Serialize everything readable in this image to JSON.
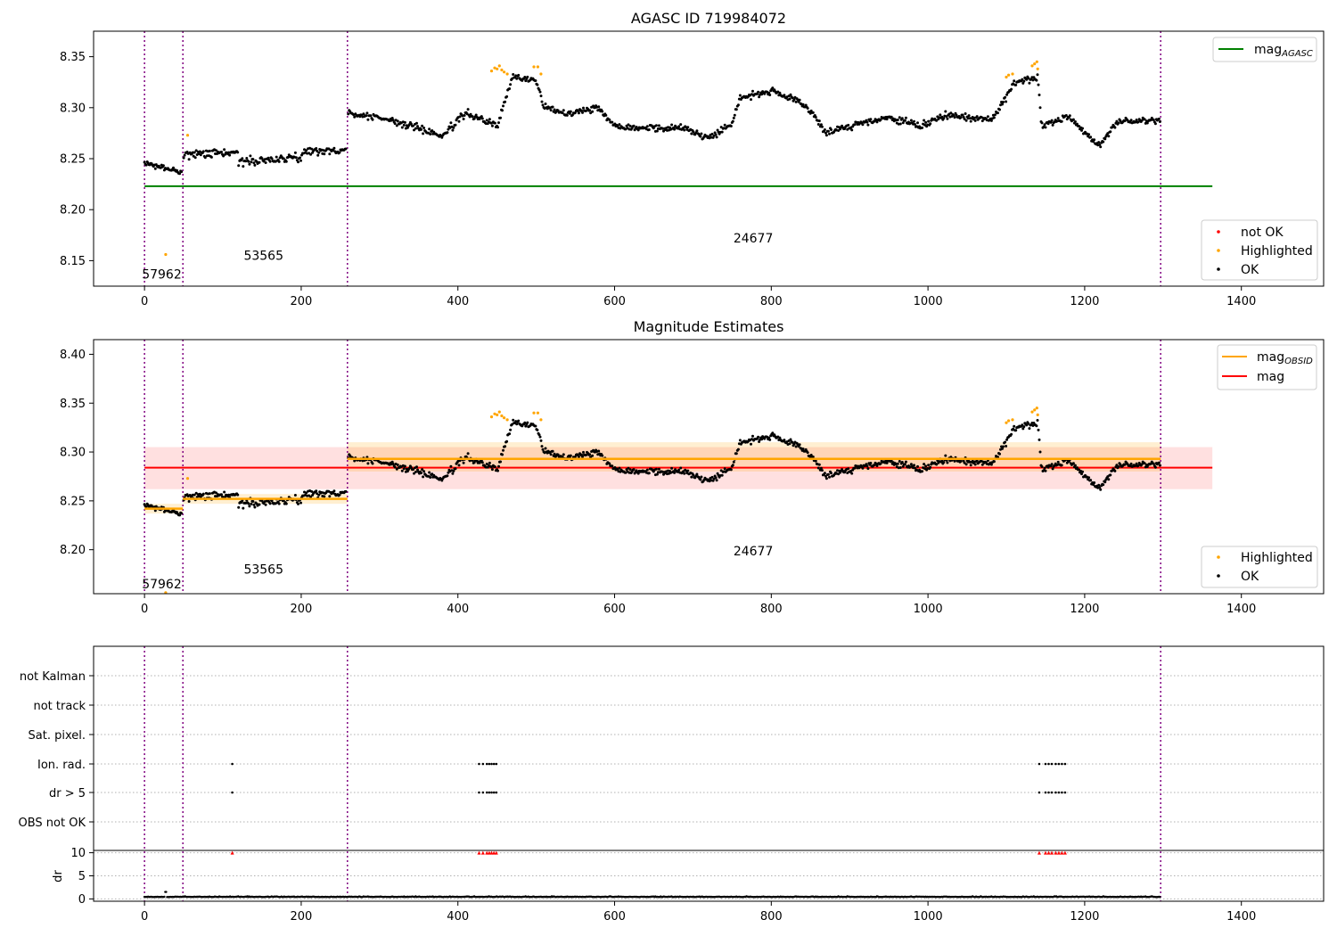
{
  "chart_data": [
    {
      "type": "scatter",
      "title": "AGASC ID 719984072",
      "xlim": [
        -65,
        1505
      ],
      "ylim": [
        8.125,
        8.375
      ],
      "xticks": [
        0,
        200,
        400,
        600,
        800,
        1000,
        1200,
        1400
      ],
      "yticks": [
        8.15,
        8.2,
        8.25,
        8.3,
        8.35
      ],
      "vlines": [
        0,
        49,
        259,
        1297
      ],
      "lines": [
        {
          "name_main": "mag",
          "name_sub": "AGASC",
          "color": "#008000",
          "y": 8.223,
          "x": [
            0,
            1363
          ]
        }
      ],
      "annotations": [
        {
          "text": "57962",
          "x": 22,
          "y": 8.137
        },
        {
          "text": "53565",
          "x": 152,
          "y": 8.155
        },
        {
          "text": "24677",
          "x": 777,
          "y": 8.172
        }
      ],
      "legend_top": {
        "position": "upper right",
        "entries": [
          {
            "label_main": "mag",
            "label_sub": "AGASC",
            "color": "#008000"
          }
        ]
      },
      "legend_bottom": {
        "position": "lower right",
        "entries": [
          {
            "label": "not OK",
            "color": "#ff0000"
          },
          {
            "label": "Highlighted",
            "color": "#ffa500"
          },
          {
            "label": "OK",
            "color": "#000000"
          }
        ]
      },
      "series": [
        {
          "name": "OK",
          "color": "#000000",
          "segments": [
            {
              "x": [
                0,
                48
              ],
              "y": [
                8.245,
                8.237
              ],
              "noise": 0.004
            },
            {
              "x": [
                50,
                258
              ],
              "y": [
                8.255,
                8.258
              ],
              "noise": 0.006,
              "dip": [
                [
                  150,
                  8.244
                ],
                [
                  200,
                  8.248
                ]
              ]
            },
            {
              "x": [
                260,
                1297
              ],
              "profile": [
                [
                  260,
                  8.295
                ],
                [
                  300,
                  8.29
                ],
                [
                  350,
                  8.28
                ],
                [
                  380,
                  8.272
                ],
                [
                  410,
                  8.295
                ],
                [
                  450,
                  8.282
                ],
                [
                  470,
                  8.33
                ],
                [
                  500,
                  8.327
                ],
                [
                  510,
                  8.3
                ],
                [
                  540,
                  8.295
                ],
                [
                  580,
                  8.3
                ],
                [
                  600,
                  8.282
                ],
                [
                  650,
                  8.28
                ],
                [
                  690,
                  8.28
                ],
                [
                  720,
                  8.27
                ],
                [
                  750,
                  8.285
                ],
                [
                  760,
                  8.31
                ],
                [
                  800,
                  8.316
                ],
                [
                  830,
                  8.307
                ],
                [
                  850,
                  8.298
                ],
                [
                  870,
                  8.275
                ],
                [
                  900,
                  8.282
                ],
                [
                  950,
                  8.29
                ],
                [
                  990,
                  8.282
                ],
                [
                  1020,
                  8.292
                ],
                [
                  1060,
                  8.29
                ],
                [
                  1080,
                  8.288
                ],
                [
                  1100,
                  8.31
                ],
                [
                  1110,
                  8.325
                ],
                [
                  1140,
                  8.33
                ],
                [
                  1145,
                  8.282
                ],
                [
                  1180,
                  8.292
                ],
                [
                  1200,
                  8.276
                ],
                [
                  1220,
                  8.262
                ],
                [
                  1240,
                  8.286
                ],
                [
                  1297,
                  8.288
                ]
              ],
              "noise": 0.005
            }
          ]
        },
        {
          "name": "Highlighted",
          "color": "#ffa500",
          "points": [
            [
              27,
              8.156
            ],
            [
              55,
              8.273
            ],
            [
              443,
              8.336
            ],
            [
              447,
              8.339
            ],
            [
              450,
              8.338
            ],
            [
              453,
              8.341
            ],
            [
              456,
              8.337
            ],
            [
              459,
              8.335
            ],
            [
              463,
              8.333
            ],
            [
              497,
              8.34
            ],
            [
              502,
              8.34
            ],
            [
              506,
              8.333
            ],
            [
              1100,
              8.33
            ],
            [
              1103,
              8.332
            ],
            [
              1108,
              8.333
            ],
            [
              1133,
              8.341
            ],
            [
              1136,
              8.343
            ],
            [
              1139,
              8.345
            ],
            [
              1140,
              8.338
            ]
          ]
        }
      ]
    },
    {
      "type": "scatter",
      "title": "Magnitude Estimates",
      "xlim": [
        -65,
        1505
      ],
      "ylim": [
        8.155,
        8.415
      ],
      "xticks": [
        0,
        200,
        400,
        600,
        800,
        1000,
        1200,
        1400
      ],
      "yticks": [
        8.2,
        8.25,
        8.3,
        8.35,
        8.4
      ],
      "vlines": [
        0,
        49,
        259,
        1297
      ],
      "bands": [
        {
          "color": "#ff0000",
          "opacity": 0.12,
          "y": [
            8.262,
            8.305
          ],
          "x": [
            0,
            1363
          ]
        },
        {
          "color": "#ffa500",
          "opacity": 0.18,
          "y": [
            8.237,
            8.247
          ],
          "x": [
            0,
            49
          ]
        },
        {
          "color": "#ffa500",
          "opacity": 0.18,
          "y": [
            8.247,
            8.257
          ],
          "x": [
            49,
            259
          ]
        },
        {
          "color": "#ffa500",
          "opacity": 0.18,
          "y": [
            8.28,
            8.31
          ],
          "x": [
            259,
            1297
          ]
        }
      ],
      "lines": [
        {
          "name_main": "mag",
          "name_sub": "OBSID",
          "color": "#ffa500",
          "segments": [
            [
              0,
              49,
              8.242
            ],
            [
              49,
              259,
              8.252
            ],
            [
              259,
              1297,
              8.293
            ]
          ]
        },
        {
          "name_main": "mag",
          "name_sub": "",
          "color": "#ff0000",
          "y": 8.284,
          "x": [
            0,
            1363
          ]
        }
      ],
      "annotations": [
        {
          "text": "57962",
          "x": 22,
          "y": 8.165
        },
        {
          "text": "53565",
          "x": 152,
          "y": 8.18
        },
        {
          "text": "24677",
          "x": 777,
          "y": 8.199
        }
      ],
      "legend_top": {
        "position": "upper right",
        "entries": [
          {
            "label_main": "mag",
            "label_sub": "OBSID",
            "color": "#ffa500"
          },
          {
            "label_main": "mag",
            "label_sub": "",
            "color": "#ff0000"
          }
        ]
      },
      "legend_bottom": {
        "position": "lower right",
        "entries": [
          {
            "label": "Highlighted",
            "color": "#ffa500"
          },
          {
            "label": "OK",
            "color": "#000000"
          }
        ]
      },
      "series": [
        {
          "name": "OK",
          "color": "#000000",
          "same_as_panel": 0
        },
        {
          "name": "Highlighted",
          "color": "#ffa500",
          "same_as_panel": 0
        }
      ]
    },
    {
      "type": "scatter",
      "title": "",
      "xlim": [
        -65,
        1505
      ],
      "xticks": [
        0,
        200,
        400,
        600,
        800,
        1000,
        1200,
        1400
      ],
      "vlines": [
        0,
        49,
        259,
        1297
      ],
      "flag_categories": [
        "not Kalman",
        "not track",
        "Sat. pixel.",
        "Ion. rad.",
        "dr > 5",
        "OBS not OK"
      ],
      "flags": {
        "Ion. rad.": [
          112,
          427,
          432,
          437,
          440,
          443,
          446,
          449,
          1142,
          1150,
          1154,
          1158,
          1163,
          1167,
          1171,
          1175
        ],
        "dr > 5": [
          112,
          427,
          432,
          437,
          440,
          443,
          446,
          449,
          1142,
          1150,
          1154,
          1158,
          1163,
          1167,
          1171,
          1175
        ]
      },
      "dr_axis": {
        "ylabel": "dr",
        "yticks": [
          0,
          5,
          10
        ],
        "ylim": [
          -0.5,
          10.5
        ]
      },
      "dr_series": [
        {
          "name": "dr",
          "color": "#000000",
          "x": [
            0,
            1297
          ],
          "y_base": 0.4,
          "noise": 0.2,
          "spikes": [
            [
              27,
              1.5
            ]
          ]
        },
        {
          "name": "dr > 10",
          "color": "#ff0000",
          "y": 10,
          "x": [
            112,
            427,
            432,
            437,
            440,
            443,
            446,
            449,
            1142,
            1150,
            1154,
            1158,
            1163,
            1167,
            1171,
            1175
          ]
        }
      ]
    }
  ]
}
